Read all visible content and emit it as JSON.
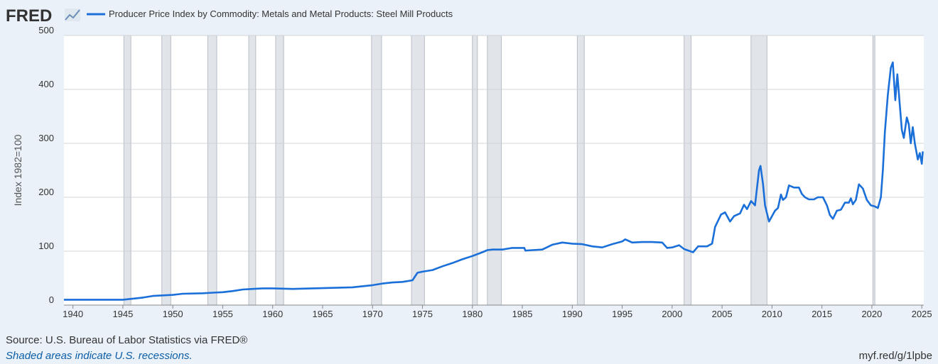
{
  "logo": "FRED",
  "source": "Source: U.S. Bureau of Labor Statistics via FRED®",
  "note": "Shaded areas indicate U.S. recessions.",
  "url": "myf.red/g/1lpbe",
  "chart_data": {
    "type": "line",
    "y_label": "Index 1982=100",
    "xlim": [
      1939.1,
      2025.2
    ],
    "xticks": [
      1940,
      1945,
      1950,
      1955,
      1960,
      1965,
      1970,
      1975,
      1980,
      1985,
      1990,
      1995,
      2000,
      2005,
      2010,
      2015,
      2020,
      2025
    ],
    "ylim": [
      0,
      500
    ],
    "yticks": [
      0,
      100,
      200,
      300,
      400,
      500
    ],
    "grid": true,
    "legend": "top-left",
    "recession_color": "#e1e5ea",
    "recessions": [
      [
        1945.1,
        1945.8
      ],
      [
        1948.9,
        1949.8
      ],
      [
        1953.5,
        1954.4
      ],
      [
        1957.6,
        1958.3
      ],
      [
        1960.3,
        1961.1
      ],
      [
        1969.9,
        1970.9
      ],
      [
        1973.9,
        1975.2
      ],
      [
        1980.0,
        1980.5
      ],
      [
        1981.5,
        1982.9
      ],
      [
        1990.5,
        1991.2
      ],
      [
        2001.2,
        2001.9
      ],
      [
        2007.9,
        2009.5
      ],
      [
        2020.1,
        2020.3
      ]
    ],
    "series": [
      {
        "name": "Producer Price Index by Commodity: Metals and Metal Products: Steel Mill Products",
        "color": "#1a6fd9",
        "x": [
          1939.1,
          1940,
          1945,
          1946,
          1947,
          1948,
          1949,
          1950,
          1951,
          1953,
          1954,
          1955,
          1956,
          1957,
          1958,
          1959,
          1960,
          1962,
          1964,
          1966,
          1968,
          1969,
          1970,
          1971,
          1972,
          1973,
          1974.0,
          1974.5,
          1975,
          1976,
          1977,
          1978,
          1979,
          1980,
          1981,
          1981.5,
          1982,
          1983,
          1984,
          1985.2,
          1985.3,
          1986,
          1987,
          1988,
          1989,
          1990,
          1991,
          1992,
          1993,
          1994,
          1995,
          1995.3,
          1996,
          1997,
          1998,
          1999,
          1999.5,
          2000,
          2000.7,
          2001.2,
          2001.8,
          2002.1,
          2002.6,
          2003.5,
          2004,
          2004.3,
          2004.9,
          2005.3,
          2005.8,
          2006.2,
          2006.8,
          2007.2,
          2007.5,
          2007.9,
          2008.3,
          2008.7,
          2008.85,
          2009.1,
          2009.3,
          2009.7,
          2010.0,
          2010.3,
          2010.6,
          2010.9,
          2011.1,
          2011.4,
          2011.7,
          2012.2,
          2012.7,
          2013.0,
          2013.3,
          2013.7,
          2014.2,
          2014.6,
          2015.1,
          2015.5,
          2015.8,
          2016.1,
          2016.5,
          2016.9,
          2017.3,
          2017.7,
          2017.9,
          2018.1,
          2018.4,
          2018.7,
          2019.1,
          2019.5,
          2019.9,
          2020.3,
          2020.6,
          2020.9,
          2021.1,
          2021.3,
          2021.6,
          2021.9,
          2022.1,
          2022.35,
          2022.55,
          2022.8,
          2023.0,
          2023.2,
          2023.5,
          2023.7,
          2023.9,
          2024.1,
          2024.3,
          2024.6,
          2024.8,
          2025.0,
          2025.1
        ],
        "values": [
          10,
          10,
          10,
          12,
          14,
          17,
          18,
          19,
          21,
          22,
          23,
          24,
          26,
          29,
          30,
          31,
          31,
          30,
          31,
          32,
          33,
          35,
          37,
          40,
          42,
          43,
          46,
          60,
          62,
          65,
          72,
          78,
          85,
          91,
          98,
          102,
          103,
          103,
          106,
          106,
          101,
          102,
          103,
          112,
          116,
          114,
          113,
          109,
          107,
          113,
          118,
          122,
          116,
          117,
          117,
          116,
          106,
          107,
          111,
          104,
          100,
          98,
          109,
          109,
          114,
          145,
          168,
          172,
          155,
          165,
          170,
          186,
          178,
          193,
          185,
          250,
          258,
          225,
          185,
          155,
          165,
          175,
          180,
          205,
          195,
          200,
          222,
          218,
          218,
          206,
          200,
          196,
          196,
          200,
          200,
          185,
          167,
          160,
          175,
          177,
          190,
          190,
          198,
          187,
          195,
          224,
          216,
          195,
          185,
          183,
          180,
          200,
          250,
          320,
          390,
          440,
          450,
          380,
          428,
          370,
          325,
          310,
          348,
          335,
          300,
          330,
          300,
          270,
          282,
          262,
          285
        ]
      }
    ]
  }
}
